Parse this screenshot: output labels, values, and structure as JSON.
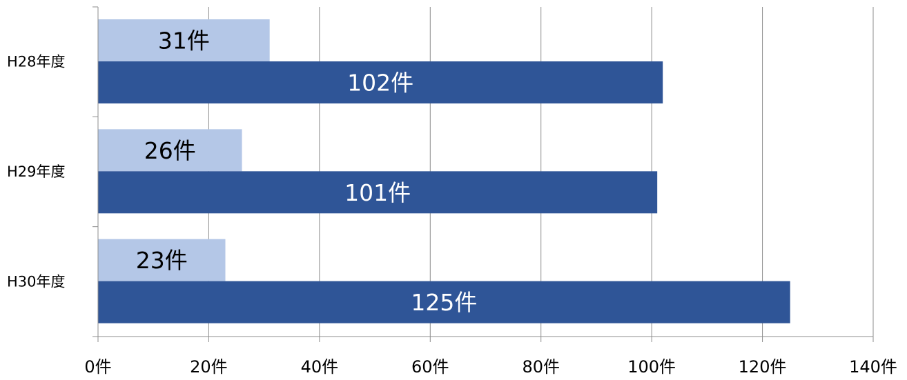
{
  "chart_data": {
    "type": "bar",
    "orientation": "horizontal",
    "categories": [
      "H28年度",
      "H29年度",
      "H30年度"
    ],
    "series": [
      {
        "values": [
          31,
          26,
          23
        ],
        "labels": [
          "31件",
          "26件",
          "23件"
        ],
        "color": "#b4c7e7",
        "label_color": "#000000"
      },
      {
        "values": [
          102,
          101,
          125
        ],
        "labels": [
          "102件",
          "101件",
          "125件"
        ],
        "color": "#2f5597",
        "label_color": "#ffffff"
      }
    ],
    "xlim": [
      0,
      140
    ],
    "xticks": [
      0,
      20,
      40,
      60,
      80,
      100,
      120,
      140
    ],
    "xtick_labels": [
      "0件",
      "20件",
      "40件",
      "60件",
      "80件",
      "100件",
      "120件",
      "140件"
    ],
    "grid": true,
    "legend": "none"
  }
}
